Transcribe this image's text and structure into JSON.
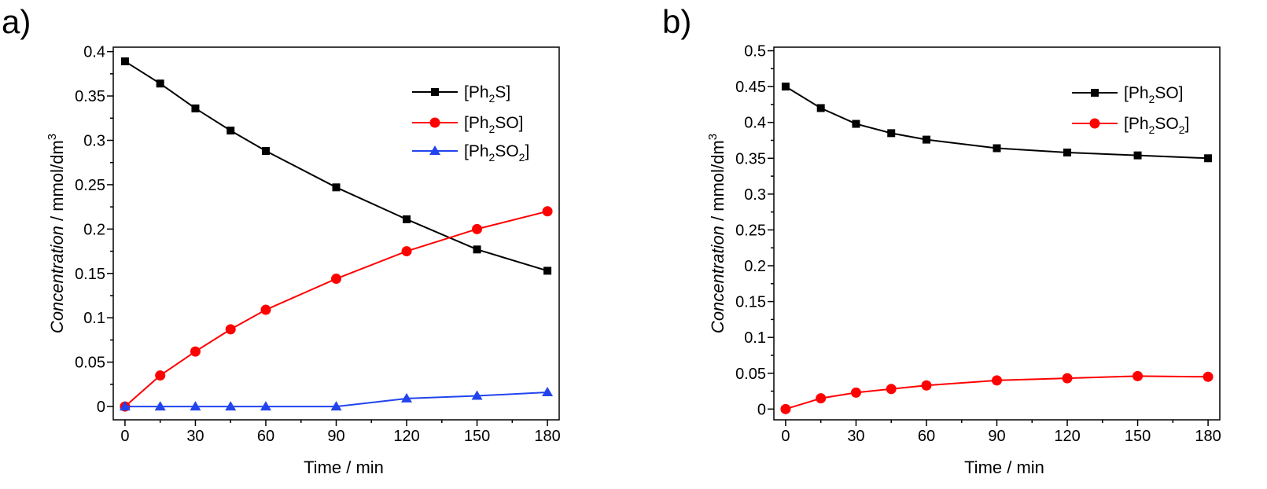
{
  "figure": {
    "panels": [
      {
        "label": "a)",
        "xlabel": "Time / min",
        "ylabel_italic": "Concentration",
        "ylabel_rest": " / mmol/dm",
        "ylabel_sup": "3",
        "xticks": [
          "0",
          "30",
          "60",
          "90",
          "120",
          "150",
          "180"
        ],
        "yticks": [
          "0",
          "0.05",
          "0.1",
          "0.15",
          "0.2",
          "0.25",
          "0.3",
          "0.35",
          "0.4"
        ],
        "legend": [
          {
            "pre": "[Ph",
            "sub": "2",
            "post": "S]"
          },
          {
            "pre": "[Ph",
            "sub": "2",
            "post": "SO]"
          },
          {
            "pre": "[Ph",
            "sub": "2",
            "post": "SO",
            "sub2": "2",
            "post2": "]"
          }
        ]
      },
      {
        "label": "b)",
        "xlabel": "Time / min",
        "ylabel_italic": "Concentration",
        "ylabel_rest": " / mmol/dm",
        "ylabel_sup": "3",
        "xticks": [
          "0",
          "30",
          "60",
          "90",
          "120",
          "150",
          "180"
        ],
        "yticks": [
          "0",
          "0.05",
          "0.1",
          "0.15",
          "0.2",
          "0.25",
          "0.3",
          "0.35",
          "0.4",
          "0.45",
          "0.5"
        ],
        "legend": [
          {
            "pre": "[Ph",
            "sub": "2",
            "post": "SO]"
          },
          {
            "pre": "[Ph",
            "sub": "2",
            "post": "SO",
            "sub2": "2",
            "post2": "]"
          }
        ]
      }
    ]
  },
  "chart_data": [
    {
      "type": "line",
      "title": "",
      "xlabel": "Time / min",
      "ylabel": "Concentration / mmol/dm3",
      "xlim": [
        -5,
        185
      ],
      "ylim": [
        -0.015,
        0.405
      ],
      "grid": false,
      "legend_position": "top-right",
      "series": [
        {
          "name": "[Ph2S]",
          "color": "#000000",
          "marker": "square",
          "x": [
            0,
            15,
            30,
            45,
            60,
            90,
            120,
            150,
            180
          ],
          "y": [
            0.389,
            0.364,
            0.336,
            0.311,
            0.288,
            0.247,
            0.211,
            0.177,
            0.153
          ]
        },
        {
          "name": "[Ph2SO]",
          "color": "#ff0000",
          "marker": "circle",
          "x": [
            0,
            15,
            30,
            45,
            60,
            90,
            120,
            150,
            180
          ],
          "y": [
            0.0,
            0.035,
            0.062,
            0.087,
            0.109,
            0.144,
            0.175,
            0.2,
            0.22
          ]
        },
        {
          "name": "[Ph2SO2]",
          "color": "#2244ee",
          "marker": "triangle",
          "x": [
            0,
            15,
            30,
            45,
            60,
            90,
            120,
            150,
            180
          ],
          "y": [
            0.0,
            0.0,
            0.0,
            0.0,
            0.0,
            0.0,
            0.009,
            0.012,
            0.016
          ]
        }
      ]
    },
    {
      "type": "line",
      "title": "",
      "xlabel": "Time / min",
      "ylabel": "Concentration / mmol/dm3",
      "xlim": [
        -5,
        185
      ],
      "ylim": [
        -0.015,
        0.505
      ],
      "grid": false,
      "legend_position": "top-right",
      "series": [
        {
          "name": "[Ph2SO]",
          "color": "#000000",
          "marker": "square",
          "x": [
            0,
            15,
            30,
            45,
            60,
            90,
            120,
            150,
            180
          ],
          "y": [
            0.45,
            0.42,
            0.398,
            0.385,
            0.376,
            0.364,
            0.358,
            0.354,
            0.35
          ]
        },
        {
          "name": "[Ph2SO2]",
          "color": "#ff0000",
          "marker": "circle",
          "x": [
            0,
            15,
            30,
            45,
            60,
            90,
            120,
            150,
            180
          ],
          "y": [
            0.0,
            0.015,
            0.023,
            0.028,
            0.033,
            0.04,
            0.043,
            0.046,
            0.045
          ]
        }
      ]
    }
  ]
}
